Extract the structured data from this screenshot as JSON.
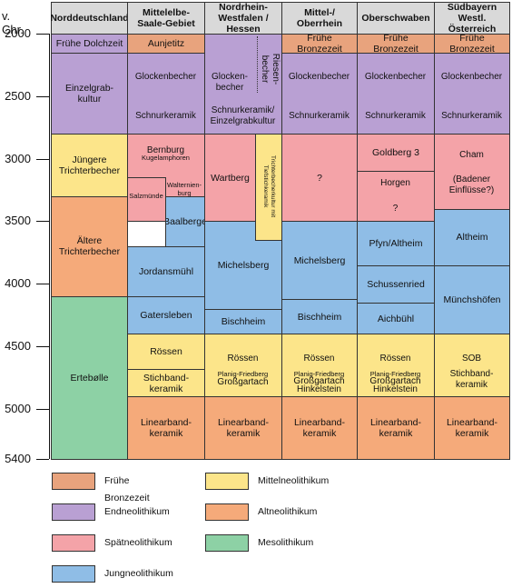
{
  "axis": {
    "unit": "v. Chr.",
    "ticks": [
      {
        "label": "2000",
        "value": 2000
      },
      {
        "label": "2500",
        "value": 2500
      },
      {
        "label": "3000",
        "value": 3000
      },
      {
        "label": "3500",
        "value": 3500
      },
      {
        "label": "4000",
        "value": 4000
      },
      {
        "label": "4500",
        "value": 4500
      },
      {
        "label": "5000",
        "value": 5000
      },
      {
        "label": "5400",
        "value": 5400
      }
    ],
    "range": [
      2000,
      5400
    ]
  },
  "colors": {
    "bronze": "#e8a37d",
    "end": "#b9a0d3",
    "spaet": "#f4a3a8",
    "jung": "#8fbde6",
    "mittel": "#fce58a",
    "alt": "#f5aa7a",
    "meso": "#8dd1a5"
  },
  "columns": [
    {
      "id": "norddeutschland",
      "label": "Norddeutschland"
    },
    {
      "id": "mittelelbe",
      "label": "Mittelelbe-\nSaale-Gebiet"
    },
    {
      "id": "nrw",
      "label": "Nordrhein-\nWestfalen /\nHessen"
    },
    {
      "id": "mittelrhein",
      "label": "Mittel-/\nOberrhein"
    },
    {
      "id": "oberschwaben",
      "label": "Oberschwaben"
    },
    {
      "id": "suedbayern",
      "label": "Südbayern\nWestl. Österreich"
    }
  ],
  "cells": [
    {
      "col": 0,
      "from": 2000,
      "to": 2150,
      "color": "end",
      "text": "Frühe Dolchzeit"
    },
    {
      "col": 0,
      "from": 2150,
      "to": 2800,
      "color": "end",
      "text": "Einzelgrab-\nkultur"
    },
    {
      "col": 0,
      "from": 2800,
      "to": 3300,
      "color": "mittel",
      "text": "Jüngere\nTrichterbecher"
    },
    {
      "col": 0,
      "from": 3300,
      "to": 4100,
      "color": "alt",
      "text": "Ältere\nTrichterbecher"
    },
    {
      "col": 0,
      "from": 4100,
      "to": 5400,
      "color": "meso",
      "text": "Ertebølle"
    },
    {
      "col": 1,
      "from": 2000,
      "to": 2150,
      "color": "bronze",
      "text": "Aunjetitz"
    },
    {
      "col": 1,
      "from": 2150,
      "to": 2800,
      "color": "end",
      "text": ""
    },
    {
      "col": 1,
      "from": 2800,
      "to": 3500,
      "color": "spaet",
      "text": ""
    },
    {
      "col": 1,
      "from": 3300,
      "to": 3700,
      "color": "jung",
      "text": "Baalberge",
      "subcol": "right2"
    },
    {
      "col": 1,
      "from": 3700,
      "to": 4100,
      "color": "jung",
      "text": "Jordansmühl"
    },
    {
      "col": 1,
      "from": 4100,
      "to": 4400,
      "color": "jung",
      "text": "Gatersleben"
    },
    {
      "col": 1,
      "from": 4400,
      "to": 4680,
      "color": "mittel",
      "text": "Rössen"
    },
    {
      "col": 1,
      "from": 4680,
      "to": 4900,
      "color": "mittel",
      "text": "Stichband-\nkeramik"
    },
    {
      "col": 1,
      "from": 4900,
      "to": 5400,
      "color": "alt",
      "text": "Linearband-\nkeramik"
    },
    {
      "col": 2,
      "from": 2000,
      "to": 2800,
      "color": "end",
      "text": ""
    },
    {
      "col": 2,
      "from": 2800,
      "to": 3500,
      "color": "spaet",
      "text": "Wartberg",
      "subcol": "left"
    },
    {
      "col": 2,
      "from": 3500,
      "to": 4200,
      "color": "jung",
      "text": "Michelsberg"
    },
    {
      "col": 2,
      "from": 4200,
      "to": 4400,
      "color": "jung",
      "text": "Bischheim"
    },
    {
      "col": 2,
      "from": 4400,
      "to": 4900,
      "color": "mittel",
      "text": ""
    },
    {
      "col": 2,
      "from": 4900,
      "to": 5400,
      "color": "alt",
      "text": "Linearband-\nkeramik"
    },
    {
      "col": 3,
      "from": 2000,
      "to": 2150,
      "color": "bronze",
      "text": "Frühe\nBronzezeit"
    },
    {
      "col": 3,
      "from": 2150,
      "to": 2800,
      "color": "end",
      "text": ""
    },
    {
      "col": 3,
      "from": 2800,
      "to": 3500,
      "color": "spaet",
      "text": "?"
    },
    {
      "col": 3,
      "from": 3500,
      "to": 4120,
      "color": "jung",
      "text": "Michelsberg"
    },
    {
      "col": 3,
      "from": 4120,
      "to": 4400,
      "color": "jung",
      "text": "Bischheim"
    },
    {
      "col": 3,
      "from": 4400,
      "to": 4900,
      "color": "mittel",
      "text": ""
    },
    {
      "col": 3,
      "from": 4900,
      "to": 5400,
      "color": "alt",
      "text": "Linearband-\nkeramik"
    },
    {
      "col": 4,
      "from": 2000,
      "to": 2150,
      "color": "bronze",
      "text": "Frühe\nBronzezeit"
    },
    {
      "col": 4,
      "from": 2150,
      "to": 2800,
      "color": "end",
      "text": ""
    },
    {
      "col": 4,
      "from": 2800,
      "to": 3100,
      "color": "spaet",
      "text": "Goldberg 3"
    },
    {
      "col": 4,
      "from": 3100,
      "to": 3500,
      "color": "spaet",
      "text": ""
    },
    {
      "col": 4,
      "from": 3500,
      "to": 3850,
      "color": "jung",
      "text": "Pfyn/Altheim"
    },
    {
      "col": 4,
      "from": 3850,
      "to": 4150,
      "color": "jung",
      "text": "Schussenried"
    },
    {
      "col": 4,
      "from": 4150,
      "to": 4400,
      "color": "jung",
      "text": "Aichbühl"
    },
    {
      "col": 4,
      "from": 4400,
      "to": 4900,
      "color": "mittel",
      "text": ""
    },
    {
      "col": 4,
      "from": 4900,
      "to": 5400,
      "color": "alt",
      "text": "Linearband-\nkeramik"
    },
    {
      "col": 5,
      "from": 2000,
      "to": 2150,
      "color": "bronze",
      "text": "Frühe\nBronzezeit"
    },
    {
      "col": 5,
      "from": 2150,
      "to": 2800,
      "color": "end",
      "text": ""
    },
    {
      "col": 5,
      "from": 2800,
      "to": 3400,
      "color": "spaet",
      "text": ""
    },
    {
      "col": 5,
      "from": 3400,
      "to": 3850,
      "color": "jung",
      "text": "Altheim"
    },
    {
      "col": 5,
      "from": 3850,
      "to": 4400,
      "color": "jung",
      "text": "Münchshöfen"
    },
    {
      "col": 5,
      "from": 4400,
      "to": 4900,
      "color": "mittel",
      "text": ""
    },
    {
      "col": 5,
      "from": 4900,
      "to": 5400,
      "color": "alt",
      "text": "Linearband-\nkeramik"
    }
  ],
  "labels": [
    {
      "col": 1,
      "at": 2350,
      "text": "Glockenbecher"
    },
    {
      "col": 1,
      "at": 2660,
      "text": "Schnurkeramik"
    },
    {
      "col": 1,
      "at": 2935,
      "text": "Bernburg"
    },
    {
      "col": 1,
      "at": 2995,
      "text": "Kugelamphoren",
      "small": true
    },
    {
      "col": 1,
      "at": 3300,
      "text": "Salzmünde",
      "small": true,
      "pos": "leftpart"
    },
    {
      "col": 1,
      "at": 3240,
      "text": "Walternien-\nburg",
      "small": true,
      "pos": "rightpart"
    },
    {
      "col": 2,
      "at": 2390,
      "text": "Glocken-\nbecher",
      "pos": "nrwleft"
    },
    {
      "col": 2,
      "at": 2660,
      "text": "Schnurkeramik/\nEinzelgrabkultur"
    },
    {
      "col": 2,
      "at": 4600,
      "text": "Rössen"
    },
    {
      "col": 2,
      "at": 4720,
      "text": "Planig-Friedberg",
      "small": true
    },
    {
      "col": 2,
      "at": 4790,
      "text": "Großgartach"
    },
    {
      "col": 3,
      "at": 2350,
      "text": "Glockenbecher"
    },
    {
      "col": 3,
      "at": 2660,
      "text": "Schnurkeramik"
    },
    {
      "col": 3,
      "at": 4600,
      "text": "Rössen"
    },
    {
      "col": 3,
      "at": 4720,
      "text": "Planig-Friedberg",
      "small": true
    },
    {
      "col": 3,
      "at": 4785,
      "text": "Großgartach"
    },
    {
      "col": 3,
      "at": 4850,
      "text": "Hinkelstein"
    },
    {
      "col": 4,
      "at": 2350,
      "text": "Glockenbecher"
    },
    {
      "col": 4,
      "at": 2660,
      "text": "Schnurkeramik"
    },
    {
      "col": 4,
      "at": 3200,
      "text": "Horgen"
    },
    {
      "col": 4,
      "at": 3400,
      "text": "?"
    },
    {
      "col": 4,
      "at": 4600,
      "text": "Rössen"
    },
    {
      "col": 4,
      "at": 4720,
      "text": "Planig-Friedberg",
      "small": true
    },
    {
      "col": 4,
      "at": 4785,
      "text": "Großgartach"
    },
    {
      "col": 4,
      "at": 4850,
      "text": "Hinkelstein"
    },
    {
      "col": 5,
      "at": 2350,
      "text": "Glockenbecher"
    },
    {
      "col": 5,
      "at": 2660,
      "text": "Schnurkeramik"
    },
    {
      "col": 5,
      "at": 2970,
      "text": "Cham"
    },
    {
      "col": 5,
      "at": 3210,
      "text": "(Badener\nEinflüsse?)"
    },
    {
      "col": 5,
      "at": 4600,
      "text": "SOB"
    },
    {
      "col": 5,
      "at": 4770,
      "text": "Stichband-\nkeramik"
    }
  ],
  "special": {
    "riesenbecher": "Riesen-\nbecher",
    "tiefstich": "Trichterbecherkultur mit\nTiefstichkeramik"
  },
  "legend": [
    {
      "color": "bronze",
      "text": "Frühe Bronzezeit"
    },
    {
      "color": "end",
      "text": "Endneolithikum"
    },
    {
      "color": "spaet",
      "text": "Spätneolithikum"
    },
    {
      "color": "jung",
      "text": "Jungneolithikum"
    },
    {
      "color": "mittel",
      "text": "Mittelneolithikum"
    },
    {
      "color": "alt",
      "text": "Altneolithikum"
    },
    {
      "color": "meso",
      "text": "Mesolithikum"
    }
  ]
}
